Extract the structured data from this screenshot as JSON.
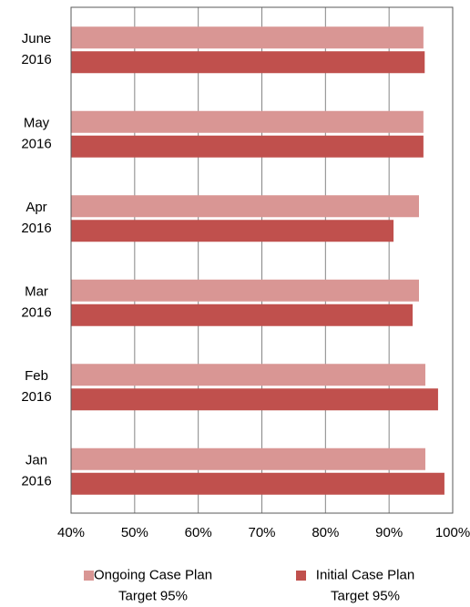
{
  "chart_data": {
    "type": "hbar",
    "categories": [
      "June\n2016",
      "May\n2016",
      "Apr\n2016",
      "Mar\n2016",
      "Feb\n2016",
      "Jan\n2016"
    ],
    "series": [
      {
        "name": "Ongoing Case Plan\nTarget 95%",
        "color": "#d99694",
        "values": [
          95.4,
          95.4,
          94.7,
          94.7,
          95.7,
          95.7
        ]
      },
      {
        "name": "Initial Case Plan\nTarget 95%",
        "color": "#c0504d",
        "values": [
          95.6,
          95.4,
          90.7,
          93.7,
          97.7,
          98.7
        ]
      }
    ],
    "xlim": [
      40,
      100
    ],
    "xticks": [
      {
        "value": 40,
        "label": "40%"
      },
      {
        "value": 50,
        "label": "50%"
      },
      {
        "value": 60,
        "label": "60%"
      },
      {
        "value": 70,
        "label": "70%"
      },
      {
        "value": 80,
        "label": "80%"
      },
      {
        "value": 90,
        "label": "90%"
      },
      {
        "value": 100,
        "label": "100%"
      }
    ],
    "grid": true,
    "legend": "bottom"
  }
}
